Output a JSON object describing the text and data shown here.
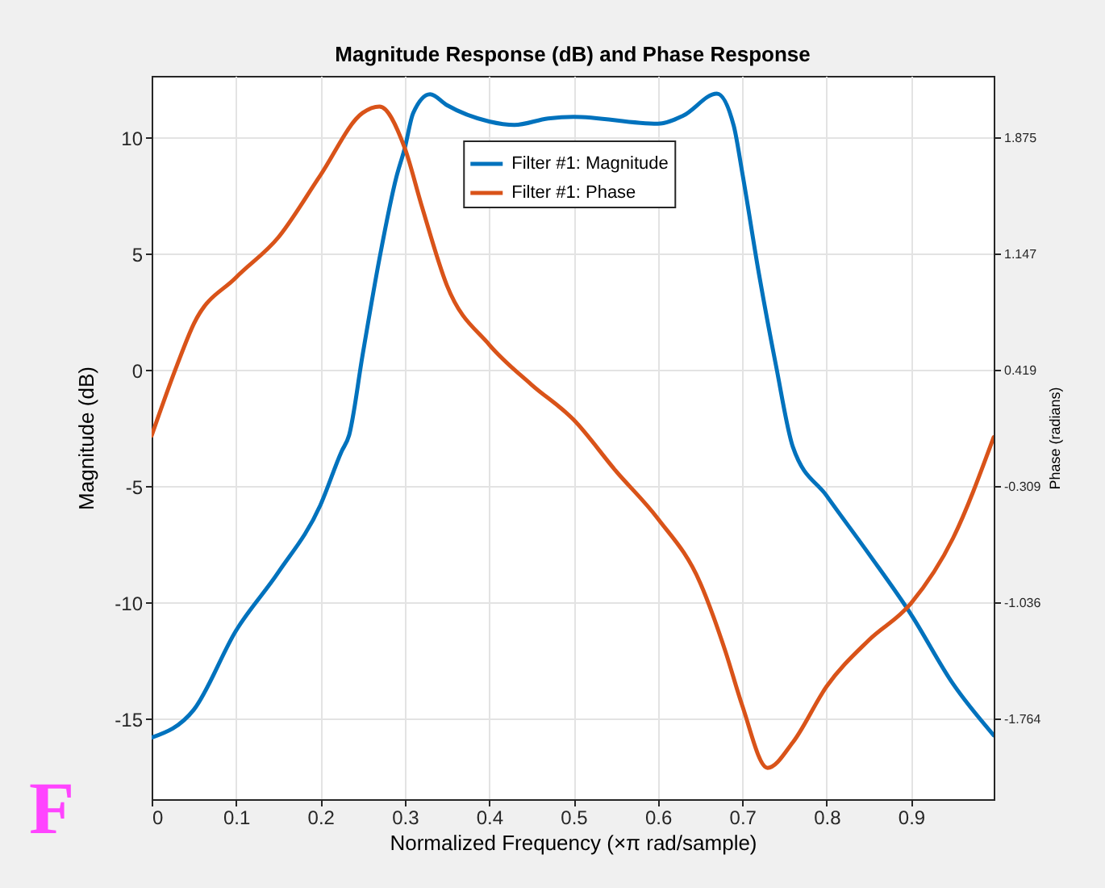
{
  "chart_data": {
    "type": "line",
    "title": "Magnitude Response (dB) and Phase Response",
    "xlabel": "Normalized Frequency (×π rad/sample)",
    "ylabel": "Magnitude (dB)",
    "y2label": "Phase (radians)",
    "xlim": [
      0,
      0.998
    ],
    "xticks": [
      0,
      0.1,
      0.2,
      0.3,
      0.4,
      0.5,
      0.6,
      0.7,
      0.8,
      0.9
    ],
    "ylim": [
      -18.45,
      12.66
    ],
    "yticks": [
      -15,
      -10,
      -5,
      0,
      5,
      10
    ],
    "y2lim": [
      -2.266,
      2.262
    ],
    "y2ticks": [
      -1.764,
      -1.036,
      -0.309,
      0.419,
      1.147,
      1.875
    ],
    "grid": true,
    "legend": "top",
    "line_style": "solid",
    "marker": "none",
    "annotations": [
      "F"
    ],
    "series": [
      {
        "name": "Filter #1: Magnitude",
        "color": "#0072bd",
        "x": [
          0,
          0.05,
          0.1,
          0.15,
          0.2,
          0.225,
          0.234,
          0.25,
          0.27,
          0.29,
          0.3,
          0.31,
          0.33,
          0.35,
          0.4,
          0.43,
          0.47,
          0.5,
          0.6,
          0.63,
          0.67,
          0.69,
          0.7,
          0.72,
          0.74,
          0.76,
          0.8,
          0.85,
          0.9,
          0.95,
          0.998
        ],
        "values": [
          -15.8,
          -14.6,
          -11.2,
          -8.7,
          -5.8,
          -3.5,
          -2.8,
          0.65,
          4.8,
          8.3,
          9.55,
          11.06,
          11.87,
          11.4,
          10.7,
          10.55,
          10.83,
          10.9,
          10.6,
          10.95,
          11.9,
          10.5,
          8.5,
          4.1,
          0.2,
          -3.3,
          -5.4,
          -7.9,
          -10.5,
          -13.5,
          -15.7
        ]
      },
      {
        "name": "Filter #1: Phase",
        "color": "#d95319",
        "axis": "y2",
        "x": [
          0,
          0.03,
          0.05,
          0.1,
          0.15,
          0.2,
          0.25,
          0.27,
          0.3,
          0.32,
          0.35,
          0.4,
          0.45,
          0.5,
          0.55,
          0.6,
          0.65,
          0.68,
          0.7,
          0.73,
          0.76,
          0.8,
          0.85,
          0.9,
          0.95,
          0.998
        ],
        "values": [
          0.01,
          0.45,
          0.71,
          1.0,
          1.25,
          1.64,
          2.03,
          2.07,
          1.81,
          1.45,
          0.95,
          0.58,
          0.33,
          0.11,
          -0.21,
          -0.51,
          -0.91,
          -1.34,
          -1.68,
          -2.07,
          -1.91,
          -1.56,
          -1.27,
          -1.04,
          -0.63,
          0.0
        ]
      }
    ]
  }
}
